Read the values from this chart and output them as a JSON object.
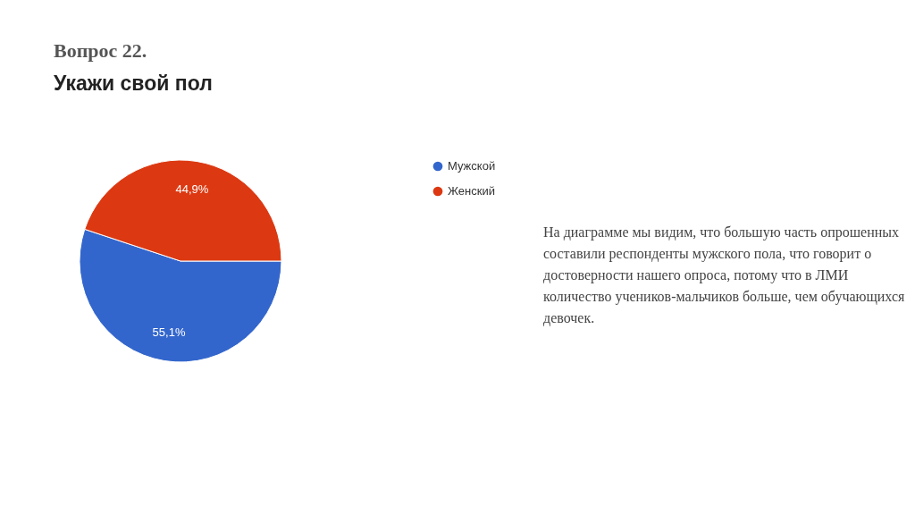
{
  "chart_data": {
    "type": "pie",
    "title": "Вопрос 22.",
    "subtitle": "Укажи свой пол",
    "categories": [
      "Мужской",
      "Женский"
    ],
    "values": [
      55.1,
      44.9
    ],
    "colors": [
      "#3366cc",
      "#dc3912"
    ],
    "value_labels": [
      "55,1%",
      "44,9%"
    ],
    "legend": "top right",
    "annotations": [
      "На диаграмме мы видим, что большую часть опрошенных составили респонденты мужского пола, что говорит о достоверности нашего опроса, потому что в ЛМИ количество учеников-мальчиков больше, чем обучающихся девочек."
    ]
  }
}
